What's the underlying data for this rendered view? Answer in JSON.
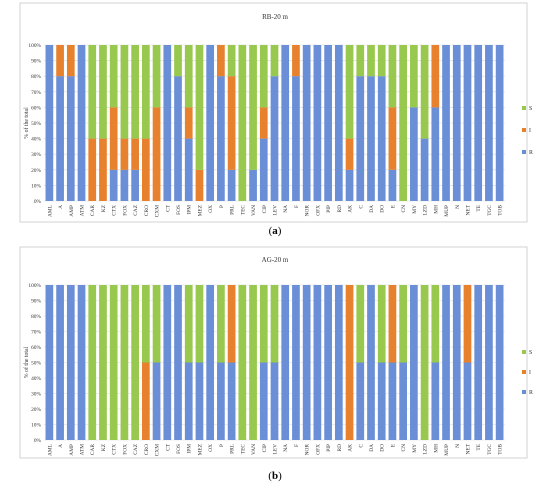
{
  "colors": {
    "R": "#6b8fd6",
    "I": "#e8812e",
    "S": "#98c94e",
    "frame": "#c8c8c8",
    "grid": "#d9d9d9"
  },
  "chart_data": [
    {
      "type": "bar",
      "stacked": true,
      "title": "RB-20 m",
      "caption": "(a)",
      "ylabel": "% of the total",
      "yticks": [
        "0%",
        "10%",
        "20%",
        "30%",
        "40%",
        "50%",
        "60%",
        "70%",
        "80%",
        "90%",
        "100%"
      ],
      "ylim": [
        0,
        100
      ],
      "legend": [
        "S",
        "I",
        "R"
      ],
      "legend_position": "right",
      "categories": [
        "AML",
        "A",
        "AMP",
        "ATM",
        "CAR",
        "KZ",
        "CTX",
        "FOX",
        "CAZ",
        "CRO",
        "CXM",
        "CT",
        "FOS",
        "IPM",
        "MEZ",
        "OX",
        "P",
        "PRL",
        "TEC",
        "VAN",
        "CIP",
        "LEV",
        "NA",
        "F",
        "NOR",
        "OFX",
        "PIP",
        "RD",
        "AK",
        "C",
        "DA",
        "DO",
        "E",
        "CN",
        "MY",
        "LZD",
        "MH",
        "MUP",
        "N",
        "NET",
        "TE",
        "TGC",
        "TOB"
      ],
      "series": [
        {
          "name": "R",
          "values": [
            100,
            80,
            80,
            100,
            0,
            0,
            20,
            20,
            20,
            0,
            0,
            100,
            80,
            40,
            0,
            100,
            80,
            20,
            0,
            20,
            40,
            80,
            100,
            80,
            100,
            100,
            100,
            100,
            20,
            80,
            80,
            80,
            20,
            0,
            60,
            40,
            60,
            100,
            100,
            100,
            100,
            100,
            100
          ]
        },
        {
          "name": "I",
          "values": [
            0,
            20,
            20,
            0,
            40,
            40,
            40,
            20,
            20,
            40,
            60,
            0,
            0,
            20,
            20,
            0,
            20,
            60,
            0,
            0,
            20,
            0,
            0,
            20,
            0,
            0,
            0,
            0,
            20,
            0,
            0,
            0,
            40,
            0,
            0,
            0,
            40,
            0,
            0,
            0,
            0,
            0,
            0
          ]
        },
        {
          "name": "S",
          "values": [
            0,
            0,
            0,
            0,
            60,
            60,
            40,
            60,
            60,
            60,
            40,
            0,
            20,
            40,
            80,
            0,
            0,
            20,
            100,
            80,
            40,
            20,
            0,
            0,
            0,
            0,
            0,
            0,
            60,
            20,
            20,
            20,
            40,
            100,
            40,
            60,
            0,
            0,
            0,
            0,
            0,
            0,
            0
          ]
        }
      ]
    },
    {
      "type": "bar",
      "stacked": true,
      "title": "AG-20 m",
      "caption": "(b)",
      "ylabel": "% of the total",
      "yticks": [
        "0%",
        "10%",
        "20%",
        "30%",
        "40%",
        "50%",
        "60%",
        "70%",
        "80%",
        "90%",
        "100%"
      ],
      "ylim": [
        0,
        100
      ],
      "legend": [
        "S",
        "I",
        "R"
      ],
      "legend_position": "right",
      "categories": [
        "AML",
        "A",
        "AMP",
        "ATM",
        "CAR",
        "KZ",
        "CTX",
        "FOX",
        "CAZ",
        "CRO",
        "CXM",
        "CT",
        "FOS",
        "IPM",
        "MEZ",
        "OX",
        "P",
        "PRL",
        "TEC",
        "VAN",
        "CIP",
        "LEV",
        "NA",
        "F",
        "NOR",
        "OFX",
        "PIP",
        "RD",
        "AK",
        "C",
        "DA",
        "DO",
        "E",
        "CN",
        "MY",
        "LZD",
        "MH",
        "MUP",
        "N",
        "NET",
        "TE",
        "TGC",
        "TOB"
      ],
      "series": [
        {
          "name": "R",
          "values": [
            100,
            100,
            100,
            100,
            0,
            0,
            0,
            0,
            0,
            0,
            50,
            100,
            100,
            50,
            50,
            100,
            50,
            50,
            0,
            0,
            50,
            50,
            100,
            100,
            100,
            100,
            100,
            100,
            0,
            50,
            100,
            50,
            50,
            50,
            100,
            0,
            50,
            100,
            100,
            50,
            100,
            100,
            100
          ]
        },
        {
          "name": "I",
          "values": [
            0,
            0,
            0,
            0,
            0,
            0,
            0,
            0,
            0,
            50,
            0,
            0,
            0,
            0,
            0,
            0,
            0,
            50,
            0,
            0,
            0,
            0,
            0,
            0,
            0,
            0,
            0,
            0,
            100,
            0,
            0,
            0,
            50,
            0,
            0,
            0,
            0,
            0,
            0,
            50,
            0,
            0,
            0
          ]
        },
        {
          "name": "S",
          "values": [
            0,
            0,
            0,
            0,
            100,
            100,
            100,
            100,
            100,
            50,
            50,
            0,
            0,
            50,
            50,
            0,
            50,
            0,
            100,
            100,
            50,
            50,
            0,
            0,
            0,
            0,
            0,
            0,
            0,
            50,
            0,
            50,
            0,
            50,
            0,
            100,
            50,
            0,
            0,
            0,
            0,
            0,
            0
          ]
        }
      ]
    }
  ]
}
